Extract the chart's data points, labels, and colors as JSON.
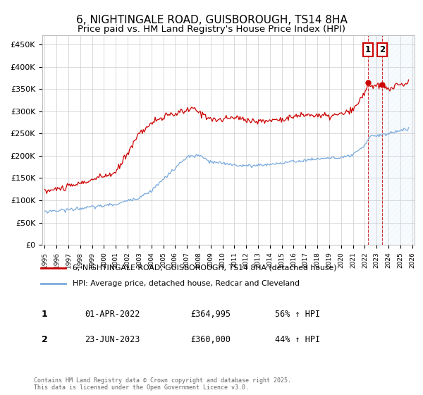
{
  "title": "6, NIGHTINGALE ROAD, GUISBOROUGH, TS14 8HA",
  "subtitle": "Price paid vs. HM Land Registry's House Price Index (HPI)",
  "yticks": [
    0,
    50000,
    100000,
    150000,
    200000,
    250000,
    300000,
    350000,
    400000,
    450000
  ],
  "ytick_labels": [
    "£0",
    "£50K",
    "£100K",
    "£150K",
    "£200K",
    "£250K",
    "£300K",
    "£350K",
    "£400K",
    "£450K"
  ],
  "xlim_start": 1994.8,
  "xlim_end": 2026.2,
  "ylim": [
    0,
    470000
  ],
  "red_line_color": "#cc0000",
  "blue_line_color": "#7aaadd",
  "marker1_x": 2022.25,
  "marker1_y": 364995,
  "marker2_x": 2023.48,
  "marker2_y": 360000,
  "vline1_x": 2022.25,
  "vline2_x": 2023.48,
  "background_color": "#ffffff",
  "grid_color": "#cccccc",
  "legend_label_red": "6, NIGHTINGALE ROAD, GUISBOROUGH, TS14 8HA (detached house)",
  "legend_label_blue": "HPI: Average price, detached house, Redcar and Cleveland",
  "table_row1": [
    "1",
    "01-APR-2022",
    "£364,995",
    "56% ↑ HPI"
  ],
  "table_row2": [
    "2",
    "23-JUN-2023",
    "£360,000",
    "44% ↑ HPI"
  ],
  "footer": "Contains HM Land Registry data © Crown copyright and database right 2025.\nThis data is licensed under the Open Government Licence v3.0.",
  "title_fontsize": 11,
  "label_fontsize": 8.5,
  "tick_fontsize": 8
}
